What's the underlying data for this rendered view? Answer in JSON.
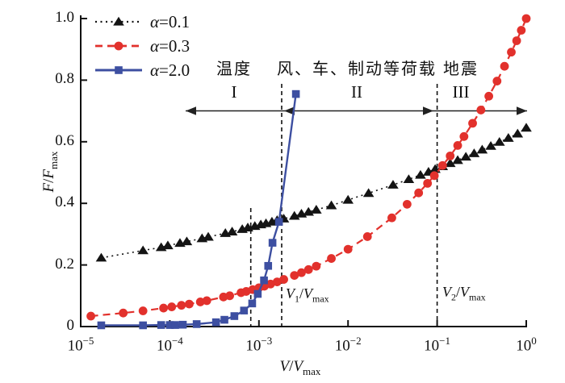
{
  "figure": {
    "type": "scientific-line-chart",
    "background": "#ffffff"
  },
  "axis_labels": {
    "x": {
      "num": "V",
      "slash": "/",
      "den": "V",
      "sub": "max"
    },
    "y": {
      "num": "F",
      "slash": "/",
      "den": "F",
      "sub": "max"
    }
  },
  "chart_data": {
    "type": "line",
    "x_scale": "log",
    "xlim": [
      1e-05,
      1
    ],
    "ylim": [
      0,
      1.0
    ],
    "xlabel": "V/Vmax",
    "ylabel": "F/Fmax",
    "grid": false,
    "legend_position": "top-left-inside",
    "x_ticks": {
      "base": "10",
      "exponents": [
        "−5",
        "−4",
        "−3",
        "−2",
        "−1",
        "0"
      ]
    },
    "y_ticks": [
      "0",
      "0.2",
      "0.4",
      "0.6",
      "0.8",
      "1.0"
    ],
    "series": [
      {
        "name": "alpha=0.1",
        "legend": {
          "symbol": "α",
          "rest": "=0.1"
        },
        "color": "#141414",
        "marker": "triangle",
        "line_style": "dotted",
        "points": [
          [
            1.7e-05,
            0.223
          ],
          [
            5e-05,
            0.247
          ],
          [
            8e-05,
            0.257
          ],
          [
            9.5e-05,
            0.263
          ],
          [
            0.00013,
            0.271
          ],
          [
            0.000155,
            0.276
          ],
          [
            0.00023,
            0.286
          ],
          [
            0.00027,
            0.291
          ],
          [
            0.00042,
            0.303
          ],
          [
            0.0005,
            0.308
          ],
          [
            0.00065,
            0.316
          ],
          [
            0.00075,
            0.321
          ],
          [
            0.0009,
            0.326
          ],
          [
            0.00105,
            0.331
          ],
          [
            0.0012,
            0.335
          ],
          [
            0.0014,
            0.34
          ],
          [
            0.0016,
            0.345
          ],
          [
            0.0019,
            0.35
          ],
          [
            0.0025,
            0.359
          ],
          [
            0.003,
            0.366
          ],
          [
            0.0036,
            0.372
          ],
          [
            0.0044,
            0.379
          ],
          [
            0.0065,
            0.393
          ],
          [
            0.01,
            0.411
          ],
          [
            0.017,
            0.433
          ],
          [
            0.032,
            0.46
          ],
          [
            0.048,
            0.478
          ],
          [
            0.065,
            0.492
          ],
          [
            0.08,
            0.502
          ],
          [
            0.095,
            0.511
          ],
          [
            0.115,
            0.52
          ],
          [
            0.14,
            0.53
          ],
          [
            0.17,
            0.54
          ],
          [
            0.21,
            0.551
          ],
          [
            0.26,
            0.562
          ],
          [
            0.32,
            0.574
          ],
          [
            0.4,
            0.586
          ],
          [
            0.5,
            0.599
          ],
          [
            0.63,
            0.612
          ],
          [
            0.8,
            0.626
          ],
          [
            1.0,
            0.645
          ]
        ]
      },
      {
        "name": "alpha=0.3",
        "legend": {
          "symbol": "α",
          "rest": "=0.3"
        },
        "color": "#e2312c",
        "marker": "circle",
        "line_style": "dashed",
        "points": [
          [
            1.3e-05,
            0.034
          ],
          [
            3e-05,
            0.044
          ],
          [
            5e-05,
            0.051
          ],
          [
            8.5e-05,
            0.06
          ],
          [
            0.000105,
            0.064
          ],
          [
            0.000135,
            0.069
          ],
          [
            0.000165,
            0.073
          ],
          [
            0.00022,
            0.08
          ],
          [
            0.00026,
            0.084
          ],
          [
            0.0004,
            0.096
          ],
          [
            0.00047,
            0.1
          ],
          [
            0.00063,
            0.11
          ],
          [
            0.00072,
            0.114
          ],
          [
            0.00085,
            0.12
          ],
          [
            0.001,
            0.126
          ],
          [
            0.00115,
            0.131
          ],
          [
            0.00135,
            0.138
          ],
          [
            0.0016,
            0.145
          ],
          [
            0.0019,
            0.153
          ],
          [
            0.0025,
            0.166
          ],
          [
            0.003,
            0.175
          ],
          [
            0.0036,
            0.185
          ],
          [
            0.0044,
            0.196
          ],
          [
            0.0065,
            0.221
          ],
          [
            0.01,
            0.251
          ],
          [
            0.0165,
            0.292
          ],
          [
            0.031,
            0.353
          ],
          [
            0.046,
            0.397
          ],
          [
            0.062,
            0.434
          ],
          [
            0.078,
            0.465
          ],
          [
            0.093,
            0.49
          ],
          [
            0.115,
            0.523
          ],
          [
            0.14,
            0.554
          ],
          [
            0.17,
            0.588
          ],
          [
            0.2,
            0.617
          ],
          [
            0.25,
            0.66
          ],
          [
            0.31,
            0.703
          ],
          [
            0.38,
            0.748
          ],
          [
            0.47,
            0.797
          ],
          [
            0.57,
            0.845
          ],
          [
            0.68,
            0.891
          ],
          [
            0.78,
            0.928
          ],
          [
            0.88,
            0.962
          ],
          [
            1.0,
            1.0
          ]
        ]
      },
      {
        "name": "alpha=2.0",
        "legend": {
          "symbol": "α",
          "rest": "=2.0"
        },
        "color": "#3d4fa1",
        "marker": "square",
        "line_style": "solid",
        "points": [
          [
            1.7e-05,
            0.004
          ],
          [
            5e-05,
            0.004
          ],
          [
            8e-05,
            0.005
          ],
          [
            0.0001,
            0.005
          ],
          [
            0.000115,
            0.005
          ],
          [
            0.00014,
            0.006
          ],
          [
            0.0002,
            0.008
          ],
          [
            0.00033,
            0.014
          ],
          [
            0.00041,
            0.022
          ],
          [
            0.00053,
            0.034
          ],
          [
            0.00068,
            0.052
          ],
          [
            0.00084,
            0.075
          ],
          [
            0.00097,
            0.106
          ],
          [
            0.00114,
            0.15
          ],
          [
            0.00127,
            0.197
          ],
          [
            0.00142,
            0.272
          ],
          [
            0.00168,
            0.34
          ],
          [
            0.0026,
            0.755
          ]
        ]
      }
    ],
    "annotations": {
      "threshold_lines": [
        {
          "v": 0.00081,
          "style": "dashed",
          "height": "short"
        },
        {
          "v": 0.0018,
          "style": "dashed",
          "height": "tall",
          "label": {
            "sym": "V",
            "sub": "1",
            "slash": "/",
            "sym2": "V",
            "sub2": "max"
          }
        },
        {
          "v": 0.1,
          "style": "dashed",
          "height": "tall",
          "label": {
            "sym": "V",
            "sub": "2",
            "slash": "/",
            "sym2": "V",
            "sub2": "max"
          }
        }
      ],
      "regions": [
        {
          "numeral": "I",
          "label": "温度",
          "arrow": "left"
        },
        {
          "numeral": "II",
          "label": "风、车、制动等荷载",
          "arrow": "both"
        },
        {
          "numeral": "III",
          "label": "地震",
          "arrow": "right"
        }
      ]
    }
  }
}
